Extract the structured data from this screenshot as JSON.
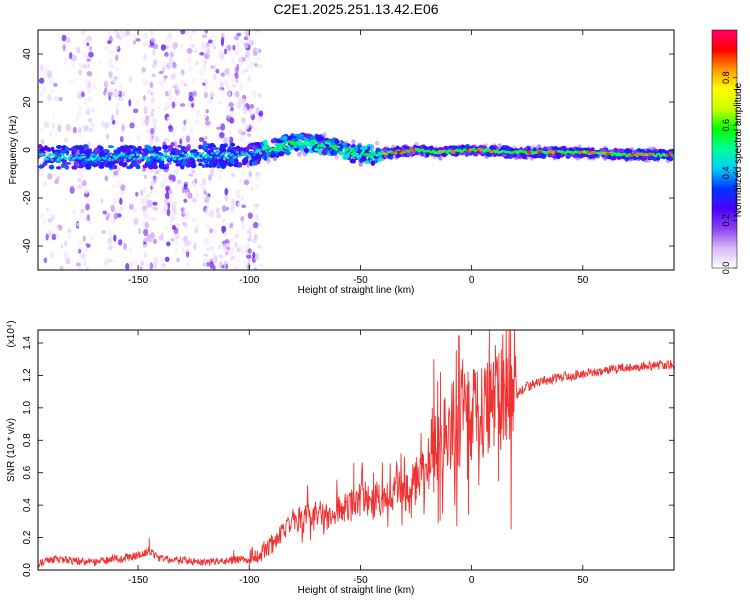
{
  "figure": {
    "title": "C2E1.2025.251.13.42.E06"
  },
  "chart_data": [
    {
      "type": "heatmap",
      "name": "spectrogram",
      "xlabel": "Height of straight line (km)",
      "ylabel": "Frequency (Hz)",
      "xlim": [
        -195,
        91
      ],
      "ylim": [
        -50,
        50
      ],
      "xticks": [
        -150,
        -100,
        -50,
        0,
        50
      ],
      "xtick_labels": [
        "-150",
        "-100",
        "-50",
        "0",
        "50"
      ],
      "yticks": [
        -40,
        -20,
        0,
        20,
        40
      ],
      "ytick_labels": [
        "-40",
        "-20",
        "0",
        "20",
        "40"
      ],
      "noisy_band_end": -94,
      "ridge": {
        "x": [
          -195,
          -150,
          -100,
          -95,
          -85,
          -75,
          -65,
          -55,
          -45,
          -35,
          -25,
          -15,
          0,
          20,
          50,
          70,
          91
        ],
        "y": [
          -3,
          -3,
          -2,
          -1,
          2,
          3,
          2,
          -1,
          -2,
          -1,
          0,
          -1,
          0,
          -1,
          -1,
          -2,
          -2
        ]
      },
      "colorbar": {
        "label": "Normalized spectral amplitude",
        "range": [
          0,
          1
        ],
        "ticks": [
          0.0,
          0.2,
          0.4,
          0.6,
          0.8
        ],
        "tick_labels": [
          "0.0",
          "0.2",
          "0.4",
          "0.6",
          "0.8"
        ],
        "colors": [
          "#ffffff",
          "#d9b8f7",
          "#8a3ff2",
          "#4a00ff",
          "#0033ff",
          "#00ccff",
          "#00ff9a",
          "#00ff00",
          "#c8ff00",
          "#ffff00",
          "#ff9900",
          "#ff0000",
          "#ff0066"
        ]
      }
    },
    {
      "type": "line",
      "name": "snr",
      "xlabel": "Height of straight line (km)",
      "ylabel": "SNR (10 * v/v)",
      "scale_label": "(x10⁴)",
      "xlim": [
        -195,
        91
      ],
      "ylim": [
        0,
        1.48
      ],
      "xticks": [
        -150,
        -100,
        -50,
        0,
        50
      ],
      "xtick_labels": [
        "-150",
        "-100",
        "-50",
        "0",
        "50"
      ],
      "yticks": [
        0.0,
        0.2,
        0.4,
        0.6,
        0.8,
        1.0,
        1.2,
        1.4
      ],
      "ytick_labels": [
        "0.0",
        "0.2",
        "0.4",
        "0.6",
        "0.8",
        "1.0",
        "1.2",
        "1.4"
      ],
      "line_color": "#ee3333",
      "series": [
        {
          "name": "SNR",
          "x": [
            -195,
            -190,
            -180,
            -170,
            -160,
            -150,
            -145,
            -140,
            -130,
            -120,
            -110,
            -100,
            -95,
            -90,
            -85,
            -80,
            -75,
            -70,
            -65,
            -60,
            -55,
            -50,
            -45,
            -40,
            -35,
            -30,
            -25,
            -20,
            -15,
            -10,
            -5,
            0,
            5,
            10,
            15,
            20,
            25,
            30,
            40,
            50,
            60,
            70,
            80,
            91
          ],
          "y": [
            0.03,
            0.06,
            0.05,
            0.04,
            0.06,
            0.08,
            0.11,
            0.06,
            0.05,
            0.04,
            0.05,
            0.06,
            0.08,
            0.14,
            0.22,
            0.28,
            0.3,
            0.32,
            0.3,
            0.33,
            0.36,
            0.4,
            0.38,
            0.42,
            0.45,
            0.47,
            0.5,
            0.58,
            0.7,
            0.8,
            0.85,
            0.9,
            0.86,
            0.95,
            1.02,
            1.07,
            1.12,
            1.15,
            1.18,
            1.2,
            1.22,
            1.24,
            1.25,
            1.26
          ]
        }
      ],
      "peaks": [
        {
          "x": -145,
          "y": 0.2
        },
        {
          "x": -107,
          "y": 0.12
        },
        {
          "x": -53,
          "y": 0.66
        },
        {
          "x": -17,
          "y": 1.3
        },
        {
          "x": -14,
          "y": 1.22
        },
        {
          "x": 8,
          "y": 1.48
        },
        {
          "x": 12,
          "y": 1.15
        }
      ]
    }
  ]
}
